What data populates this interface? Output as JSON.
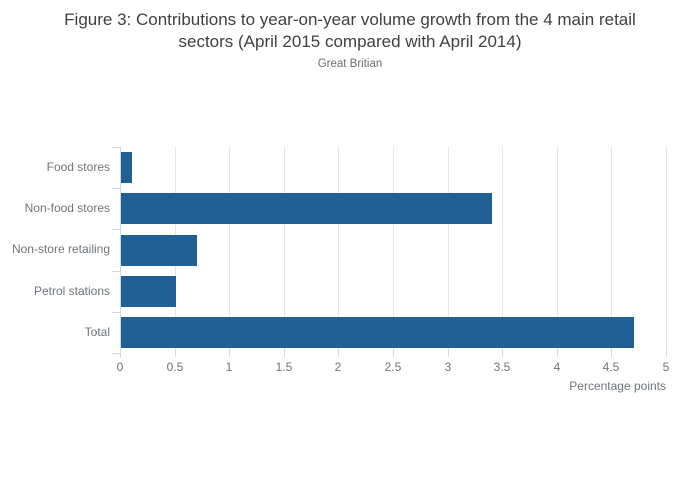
{
  "figure": {
    "title": "Figure 3: Contributions to year-on-year volume growth from the 4 main retail sectors (April 2015 compared with April 2014)",
    "subtitle": "Great Britian"
  },
  "chart_data": {
    "type": "bar",
    "orientation": "horizontal",
    "title": "Figure 3: Contributions to year-on-year volume growth from the 4 main retail sectors (April 2015 compared with April 2014)",
    "subtitle": "Great Britian",
    "categories": [
      "Food stores",
      "Non-food stores",
      "Non-store retailing",
      "Petrol stations",
      "Total"
    ],
    "values": [
      0.1,
      3.4,
      0.7,
      0.5,
      4.7
    ],
    "xlabel": "Percentage points",
    "ylabel": "",
    "xlim": [
      0,
      5
    ],
    "xticks": [
      0,
      0.5,
      1,
      1.5,
      2,
      2.5,
      3,
      3.5,
      4,
      4.5,
      5
    ],
    "xtick_labels": [
      "0",
      "0.5",
      "1",
      "1.5",
      "2",
      "2.5",
      "3",
      "3.5",
      "4",
      "4.5",
      "5"
    ],
    "grid": true,
    "legend": false,
    "colors": {
      "bar": "#216096",
      "gridline": "#e4e4e4",
      "y_axis": "#ccd9e5",
      "x_tick": "#dadada",
      "title_text": "#404040",
      "label_text": "#6e7479"
    }
  }
}
